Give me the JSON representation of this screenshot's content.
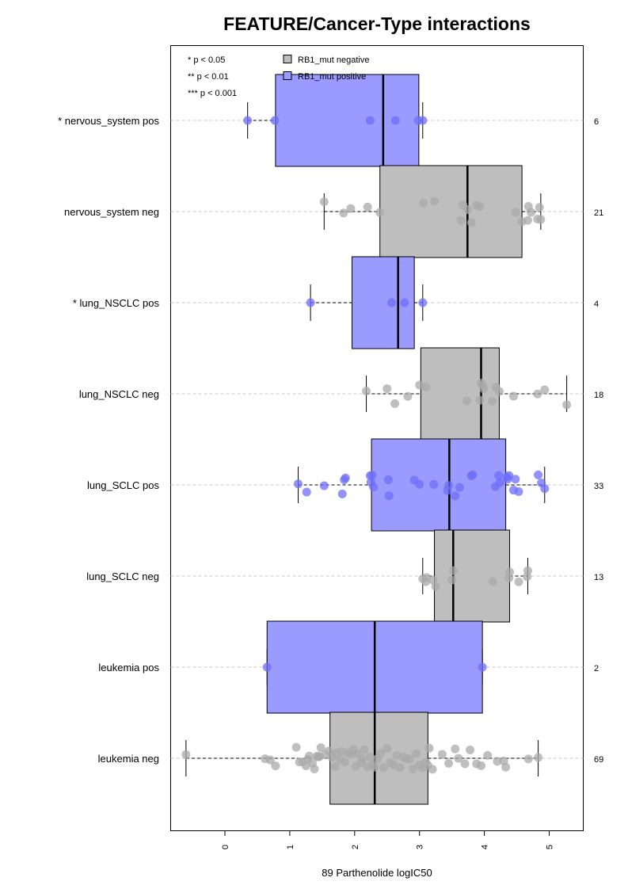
{
  "chart_data": {
    "type": "box",
    "orientation": "horizontal",
    "title": "FEATURE/Cancer-Type interactions",
    "xlabel": "89 Parthenolide logIC50",
    "xlim": [
      -0.85,
      5.5
    ],
    "x_ticks": [
      "0",
      "1",
      "2",
      "3",
      "4",
      "5"
    ],
    "grid": "dashed horizontal lines per group",
    "legend": {
      "placement": "top-left",
      "significance": [
        "* p < 0.05",
        "** p < 0.01",
        "*** p < 0.001"
      ],
      "groups": [
        {
          "label": "RB1_mut negative",
          "color": "#bebebe"
        },
        {
          "label": "RB1_mut positive",
          "color": "#9a9aff"
        }
      ]
    },
    "colors": {
      "negative_box": "#bebebe",
      "positive_box": "#9a9aff",
      "negative_point": "#aaaaaa",
      "positive_point": "#6e6ef8"
    },
    "groups": [
      {
        "label": "* nervous_system pos",
        "n": "6",
        "type": "positive",
        "whisker_low": 0.35,
        "q1": 0.78,
        "median": 2.44,
        "q3": 2.99,
        "whisker_high": 3.05,
        "points": [
          0.35,
          0.77,
          2.24,
          2.63,
          2.98,
          3.05
        ]
      },
      {
        "label": "nervous_system neg",
        "n": "21",
        "type": "negative",
        "whisker_low": 1.53,
        "q1": 2.39,
        "median": 3.74,
        "q3": 4.58,
        "whisker_high": 4.87,
        "points": [
          1.53,
          1.83,
          1.94,
          2.2,
          2.39,
          3.06,
          3.23,
          3.64,
          3.67,
          3.74,
          3.8,
          3.88,
          4.48,
          4.58,
          4.67,
          4.68,
          4.72,
          4.82,
          4.85,
          4.87,
          3.93
        ]
      },
      {
        "label": "* lung_NSCLC pos",
        "n": "4",
        "type": "positive",
        "whisker_low": 1.32,
        "q1": 1.96,
        "median": 2.67,
        "q3": 2.92,
        "whisker_high": 3.05,
        "points": [
          1.32,
          2.57,
          2.77,
          3.05
        ]
      },
      {
        "label": "lung_NSCLC neg",
        "n": "18",
        "type": "negative",
        "whisker_low": 2.18,
        "q1": 3.02,
        "median": 3.95,
        "q3": 4.23,
        "whisker_high": 5.27,
        "points": [
          2.18,
          2.5,
          2.62,
          2.82,
          3.0,
          3.1,
          3.73,
          3.93,
          3.95,
          3.97,
          3.99,
          4.12,
          4.18,
          4.23,
          4.45,
          4.82,
          4.93,
          5.27
        ]
      },
      {
        "label": "lung_SCLC pos",
        "n": "33",
        "type": "positive",
        "whisker_low": 1.13,
        "q1": 2.26,
        "median": 3.46,
        "q3": 4.33,
        "whisker_high": 4.93,
        "points": [
          1.13,
          1.26,
          1.53,
          1.81,
          1.84,
          1.86,
          2.24,
          2.25,
          2.27,
          2.29,
          2.52,
          2.53,
          2.92,
          3.0,
          3.22,
          3.43,
          3.45,
          3.55,
          3.62,
          3.8,
          3.82,
          4.17,
          4.22,
          4.24,
          4.35,
          4.36,
          4.38,
          4.45,
          4.48,
          4.53,
          4.83,
          4.88,
          4.93
        ]
      },
      {
        "label": "lung_SCLC neg",
        "n": "13",
        "type": "negative",
        "whisker_low": 3.05,
        "q1": 3.23,
        "median": 3.52,
        "q3": 4.39,
        "whisker_high": 4.67,
        "points": [
          3.05,
          3.1,
          3.11,
          3.21,
          3.25,
          3.5,
          3.52,
          4.13,
          4.38,
          4.39,
          4.53,
          4.66,
          4.67
        ]
      },
      {
        "label": "leukemia pos",
        "n": "2",
        "type": "positive",
        "whisker_low": 0.65,
        "q1": 0.65,
        "median": 2.31,
        "q3": 3.97,
        "whisker_high": 3.97,
        "points": [
          0.65,
          3.97
        ]
      },
      {
        "label": "leukemia neg",
        "n": "69",
        "type": "negative",
        "whisker_low": -0.6,
        "q1": 1.62,
        "median": 2.31,
        "q3": 3.13,
        "whisker_high": 4.83,
        "points": [
          -0.6,
          0.62,
          0.7,
          0.78,
          1.1,
          1.15,
          1.2,
          1.25,
          1.28,
          1.3,
          1.35,
          1.38,
          1.42,
          1.44,
          1.46,
          1.48,
          1.55,
          1.6,
          1.65,
          1.7,
          1.72,
          1.78,
          1.8,
          1.85,
          1.9,
          1.95,
          1.98,
          2.02,
          2.05,
          2.1,
          2.12,
          2.15,
          2.2,
          2.24,
          2.28,
          2.31,
          2.35,
          2.4,
          2.45,
          2.5,
          2.55,
          2.6,
          2.65,
          2.7,
          2.75,
          2.8,
          2.85,
          2.9,
          2.95,
          3.0,
          3.05,
          3.1,
          3.13,
          3.15,
          3.2,
          3.35,
          3.45,
          3.55,
          3.6,
          3.7,
          3.78,
          3.88,
          3.95,
          4.05,
          4.2,
          4.3,
          4.33,
          4.68,
          4.83
        ]
      }
    ]
  }
}
